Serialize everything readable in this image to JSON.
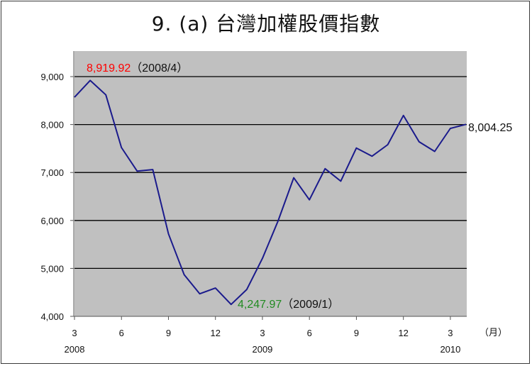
{
  "chart_data": {
    "type": "line",
    "title": "9. (a)  台灣加權股價指數",
    "ylim": [
      4000,
      9000
    ],
    "y_ticks": [
      "4,000",
      "5,000",
      "6,000",
      "7,000",
      "8,000",
      "9,000"
    ],
    "y_tick_values": [
      4000,
      5000,
      6000,
      7000,
      8000,
      9000
    ],
    "x_tick_labels": [
      "3",
      "6",
      "9",
      "12",
      "3",
      "6",
      "9",
      "12",
      "3"
    ],
    "x_tick_index": [
      0,
      3,
      6,
      9,
      12,
      15,
      18,
      21,
      24
    ],
    "year_labels": [
      "2008",
      "2009",
      "2010"
    ],
    "year_label_index": [
      0,
      12,
      24
    ],
    "x_unit": "（月）",
    "x": [
      "2008/3",
      "2008/4",
      "2008/5",
      "2008/6",
      "2008/7",
      "2008/8",
      "2008/9",
      "2008/10",
      "2008/11",
      "2008/12",
      "2009/1",
      "2009/2",
      "2009/3",
      "2009/4",
      "2009/5",
      "2009/6",
      "2009/7",
      "2009/8",
      "2009/9",
      "2009/10",
      "2009/11",
      "2009/12",
      "2010/1",
      "2010/2",
      "2010/3",
      "2010/4"
    ],
    "series": [
      {
        "values": [
          8570,
          8919.92,
          8620,
          7520,
          7030,
          7060,
          5720,
          4870,
          4470,
          4590,
          4247.97,
          4560,
          5210,
          5990,
          6890,
          6430,
          7080,
          6820,
          7510,
          7340,
          7580,
          8190,
          7640,
          7440,
          7920,
          8004.25
        ],
        "color": "#1a1a8c"
      }
    ],
    "grid": true,
    "plot_background": "#c0c0c0",
    "annotations": {
      "max": {
        "value": "8,919.92",
        "date": "（2008/4）",
        "color": "#ff0000",
        "index": 1
      },
      "min": {
        "value": "4,247.97",
        "date": "（2009/1）",
        "color": "#228b22",
        "index": 10
      },
      "last": {
        "value": "8,004.25",
        "color": "#111111",
        "index": 25
      }
    }
  }
}
